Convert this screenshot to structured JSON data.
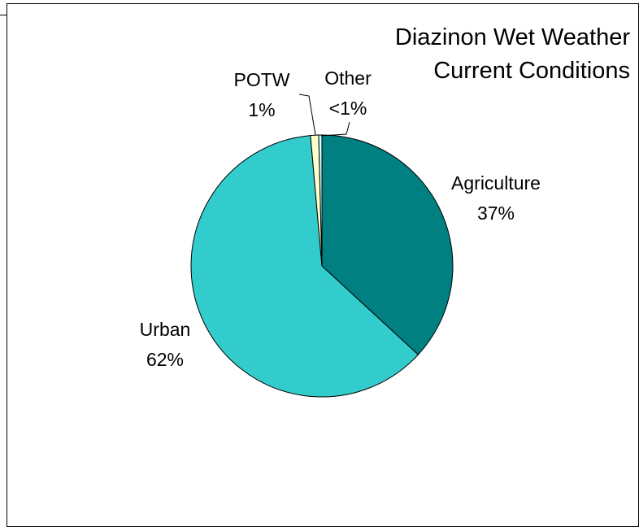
{
  "chart_data": {
    "type": "pie",
    "title": [
      "Diazinon Wet Weather",
      "Current Conditions"
    ],
    "categories": [
      "Agriculture",
      "Urban",
      "POTW",
      "Other"
    ],
    "values": [
      37,
      62,
      1,
      0.4
    ],
    "value_labels": [
      "37%",
      "62%",
      "1%",
      "<1%"
    ],
    "colors": [
      "#008080",
      "#33cccc",
      "#ffffcc",
      "#ccffff"
    ]
  }
}
